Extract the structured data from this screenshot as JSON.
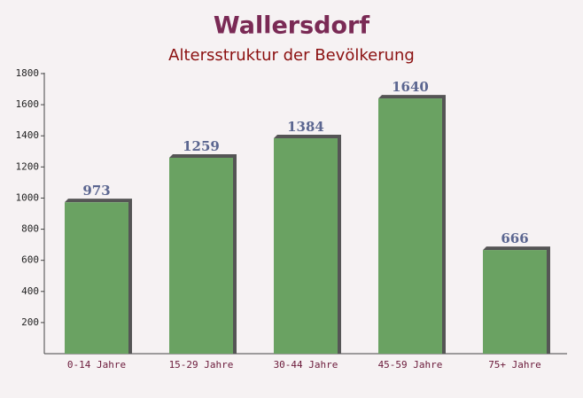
{
  "chart_data": {
    "type": "bar",
    "title": "Wallersdorf",
    "subtitle": "Altersstruktur der Bevölkerung",
    "categories": [
      "0-14 Jahre",
      "15-29 Jahre",
      "30-44 Jahre",
      "45-59 Jahre",
      "75+ Jahre"
    ],
    "values": [
      973,
      1259,
      1384,
      1640,
      666
    ],
    "color": "#6aa262",
    "ylim": [
      0,
      1800
    ],
    "yticks": [
      200,
      400,
      600,
      800,
      1000,
      1200,
      1400,
      1600,
      1800
    ],
    "grid": false
  }
}
